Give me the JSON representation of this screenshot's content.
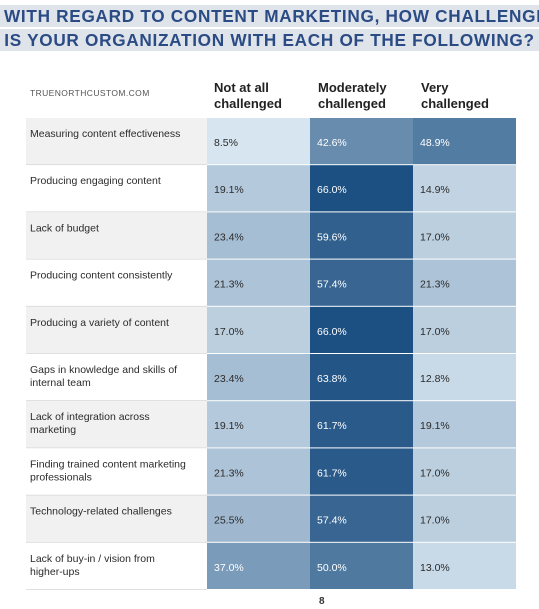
{
  "title_lines": [
    "WITH REGARD TO CONTENT MARKETING, HOW CHALLENGED",
    "IS YOUR ORGANIZATION WITH EACH OF THE FOLLOWING?"
  ],
  "source": "TRUENORTHCUSTOM.COM",
  "footer_mark": "8",
  "chart_data": {
    "type": "heatmap",
    "title": "WITH REGARD TO CONTENT MARKETING, HOW CHALLENGED IS YOUR ORGANIZATION WITH EACH OF THE FOLLOWING?",
    "columns": [
      [
        "Not at all",
        "challenged"
      ],
      [
        "Moderately",
        "challenged"
      ],
      [
        "Very",
        "challenged"
      ]
    ],
    "rows": [
      {
        "label": [
          "Measuring content effectiveness"
        ],
        "values": [
          8.5,
          42.6,
          48.9
        ]
      },
      {
        "label": [
          "Producing engaging content"
        ],
        "values": [
          19.1,
          66.0,
          14.9
        ]
      },
      {
        "label": [
          "Lack of budget"
        ],
        "values": [
          23.4,
          59.6,
          17.0
        ]
      },
      {
        "label": [
          "Producing content consistently"
        ],
        "values": [
          21.3,
          57.4,
          21.3
        ]
      },
      {
        "label": [
          "Producing a variety of content"
        ],
        "values": [
          17.0,
          66.0,
          17.0
        ]
      },
      {
        "label": [
          "Gaps in knowledge and skills of",
          "internal team"
        ],
        "values": [
          23.4,
          63.8,
          12.8
        ]
      },
      {
        "label": [
          "Lack of integration across",
          "marketing"
        ],
        "values": [
          19.1,
          61.7,
          19.1
        ]
      },
      {
        "label": [
          "Finding trained content marketing",
          "professionals"
        ],
        "values": [
          21.3,
          61.7,
          17.0
        ]
      },
      {
        "label": [
          "Technology-related challenges"
        ],
        "values": [
          25.5,
          57.4,
          17.0
        ]
      },
      {
        "label": [
          "Lack of buy-in / vision from",
          "higher-ups"
        ],
        "values": [
          37.0,
          50.0,
          13.0
        ]
      }
    ],
    "cell_labels": [
      [
        "8.5%",
        "42.6%",
        "48.9%"
      ],
      [
        "19.1%",
        "66.0%",
        "14.9%"
      ],
      [
        "23.4%",
        "59.6%",
        "17.0%"
      ],
      [
        "21.3%",
        "57.4%",
        "21.3%"
      ],
      [
        "17.0%",
        "66.0%",
        "17.0%"
      ],
      [
        "23.4%",
        "63.8%",
        "12.8%"
      ],
      [
        "19.1%",
        "61.7%",
        "19.1%"
      ],
      [
        "21.3%",
        "61.7%",
        "17.0%"
      ],
      [
        "25.5%",
        "57.4%",
        "17.0%"
      ],
      [
        "37.0%",
        "50.0%",
        "13.0%"
      ]
    ],
    "color_scale": {
      "low": "#d8e6f0",
      "high": "#1c4f82"
    },
    "row_band_color": "#f1f1f1"
  }
}
